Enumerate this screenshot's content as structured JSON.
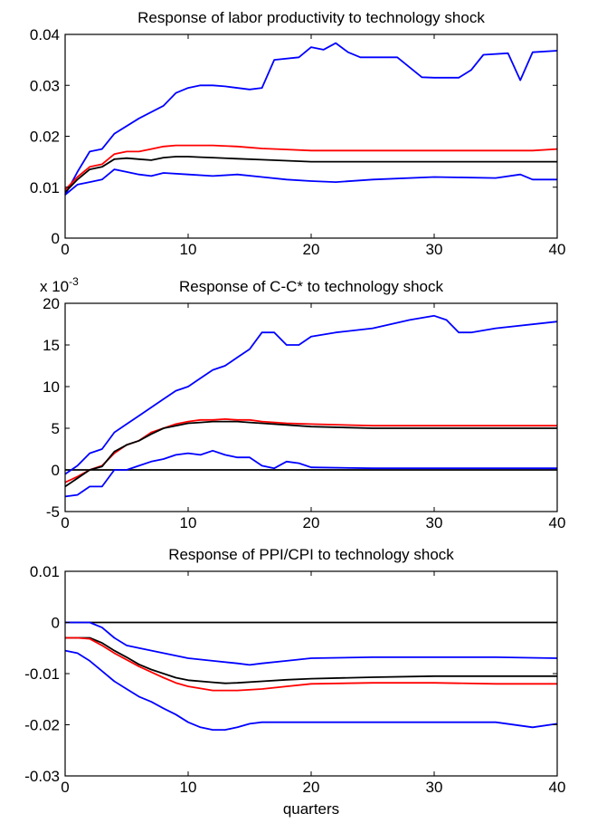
{
  "colors": {
    "blue": "#0000ff",
    "red": "#ff0000",
    "black": "#000000"
  },
  "chart_data": [
    {
      "type": "line",
      "title": "Response of labor productivity to technology shock",
      "xlabel": "",
      "xlim": [
        0,
        40
      ],
      "ylim": [
        0,
        0.04
      ],
      "xticks": [
        0,
        10,
        20,
        30,
        40
      ],
      "yticks": [
        0,
        0.01,
        0.02,
        0.03,
        0.04
      ],
      "xtick_labels": [
        "0",
        "10",
        "20",
        "30",
        "40"
      ],
      "ytick_labels": [
        "0",
        "0.01",
        "0.02",
        "0.03",
        "0.04"
      ],
      "exponent_label": "",
      "grid": false,
      "series": [
        {
          "color": "#0000ff",
          "x": [
            0,
            1,
            2,
            3,
            4,
            6,
            8,
            9,
            10,
            11,
            12,
            13,
            15,
            16,
            17,
            19,
            20,
            21,
            22,
            23,
            24,
            27,
            29,
            30,
            32,
            33,
            34,
            36,
            37,
            38,
            40
          ],
          "y": [
            0.0085,
            0.013,
            0.017,
            0.0175,
            0.0205,
            0.0235,
            0.026,
            0.0285,
            0.0295,
            0.03,
            0.03,
            0.0298,
            0.0292,
            0.0295,
            0.035,
            0.0355,
            0.0375,
            0.037,
            0.0383,
            0.0365,
            0.0355,
            0.0355,
            0.0316,
            0.0315,
            0.0315,
            0.033,
            0.036,
            0.0363,
            0.031,
            0.0365,
            0.0368
          ]
        },
        {
          "color": "#000000",
          "x": [
            0,
            1,
            2,
            3,
            4,
            5,
            6,
            7,
            8,
            9,
            10,
            11,
            12,
            14,
            16,
            18,
            20,
            25,
            30,
            35,
            40
          ],
          "y": [
            0.009,
            0.0115,
            0.0135,
            0.014,
            0.0155,
            0.0157,
            0.0155,
            0.0153,
            0.0158,
            0.016,
            0.016,
            0.0159,
            0.0158,
            0.0156,
            0.0154,
            0.0152,
            0.015,
            0.015,
            0.015,
            0.015,
            0.015
          ]
        },
        {
          "color": "#ff0000",
          "x": [
            0,
            1,
            2,
            3,
            4,
            5,
            6,
            7,
            8,
            9,
            10,
            12,
            14,
            16,
            18,
            20,
            25,
            30,
            35,
            38,
            40
          ],
          "y": [
            0.0095,
            0.012,
            0.014,
            0.0145,
            0.0165,
            0.017,
            0.017,
            0.0175,
            0.018,
            0.0182,
            0.0182,
            0.0182,
            0.018,
            0.0176,
            0.0174,
            0.0172,
            0.0172,
            0.0172,
            0.0172,
            0.0172,
            0.0175
          ]
        },
        {
          "color": "#0000ff",
          "x": [
            0,
            1,
            2,
            3,
            4,
            5,
            6,
            7,
            8,
            10,
            12,
            14,
            16,
            18,
            20,
            22,
            25,
            30,
            35,
            37,
            38,
            40
          ],
          "y": [
            0.0085,
            0.0105,
            0.011,
            0.0115,
            0.0135,
            0.013,
            0.0125,
            0.0122,
            0.0128,
            0.0125,
            0.0122,
            0.0125,
            0.012,
            0.0115,
            0.0112,
            0.011,
            0.0115,
            0.012,
            0.0118,
            0.0125,
            0.0115,
            0.0115
          ]
        }
      ]
    },
    {
      "type": "line",
      "title": "Response of C-C* to technology shock",
      "xlabel": "",
      "xlim": [
        0,
        40
      ],
      "ylim": [
        -5,
        20
      ],
      "xticks": [
        0,
        10,
        20,
        30,
        40
      ],
      "yticks": [
        -5,
        0,
        5,
        10,
        15,
        20
      ],
      "xtick_labels": [
        "0",
        "10",
        "20",
        "30",
        "40"
      ],
      "ytick_labels": [
        "-5",
        "0",
        "5",
        "10",
        "15",
        "20"
      ],
      "exponent_label": "x 10",
      "exponent_power": "-3",
      "grid": false,
      "series": [
        {
          "color": "#000000",
          "x": [
            0,
            40
          ],
          "y": [
            0,
            0
          ]
        },
        {
          "color": "#0000ff",
          "x": [
            0,
            1,
            2,
            3,
            4,
            5,
            6,
            7,
            8,
            9,
            10,
            11,
            12,
            13,
            14,
            15,
            16,
            17,
            18,
            19,
            20,
            22,
            25,
            28,
            30,
            31,
            32,
            33,
            35,
            40
          ],
          "y": [
            -0.5,
            0.5,
            2,
            2.5,
            4.5,
            5.5,
            6.5,
            7.5,
            8.5,
            9.5,
            10,
            11,
            12,
            12.5,
            13.5,
            14.5,
            16.5,
            16.5,
            15,
            15,
            16,
            16.5,
            17,
            18,
            18.5,
            18,
            16.5,
            16.5,
            17,
            17.8
          ]
        },
        {
          "color": "#ff0000",
          "x": [
            0,
            1,
            2,
            3,
            4,
            5,
            6,
            7,
            8,
            9,
            10,
            11,
            12,
            13,
            14,
            15,
            16,
            18,
            20,
            25,
            30,
            35,
            40
          ],
          "y": [
            -1.5,
            -0.8,
            0,
            0.5,
            2,
            3,
            3.5,
            4.5,
            5,
            5.5,
            5.8,
            6,
            6,
            6.1,
            6,
            6,
            5.8,
            5.6,
            5.5,
            5.3,
            5.3,
            5.3,
            5.3
          ]
        },
        {
          "color": "#000000",
          "x": [
            0,
            1,
            2,
            3,
            4,
            5,
            6,
            7,
            8,
            9,
            10,
            11,
            12,
            13,
            14,
            15,
            16,
            18,
            20,
            25,
            30,
            35,
            40
          ],
          "y": [
            -2,
            -1,
            0,
            0.4,
            2.2,
            3,
            3.5,
            4.3,
            5,
            5.3,
            5.6,
            5.7,
            5.8,
            5.8,
            5.8,
            5.7,
            5.6,
            5.4,
            5.2,
            5,
            5,
            5,
            5
          ]
        },
        {
          "color": "#0000ff",
          "x": [
            0,
            1,
            2,
            3,
            4,
            5,
            6,
            7,
            8,
            9,
            10,
            11,
            12,
            13,
            14,
            15,
            16,
            17,
            18,
            19,
            20,
            25,
            30,
            35,
            40
          ],
          "y": [
            -3.2,
            -3,
            -2,
            -2,
            0,
            0,
            0.5,
            1,
            1.3,
            1.8,
            2,
            1.8,
            2.3,
            1.8,
            1.5,
            1.5,
            0.5,
            0.2,
            1,
            0.8,
            0.3,
            0.2,
            0.2,
            0.2,
            0.2
          ]
        }
      ]
    },
    {
      "type": "line",
      "title": "Response of PPI/CPI to technology shock",
      "xlabel": "quarters",
      "xlim": [
        0,
        40
      ],
      "ylim": [
        -0.03,
        0.01
      ],
      "xticks": [
        0,
        10,
        20,
        30,
        40
      ],
      "yticks": [
        -0.03,
        -0.02,
        -0.01,
        0,
        0.01
      ],
      "xtick_labels": [
        "0",
        "10",
        "20",
        "30",
        "40"
      ],
      "ytick_labels": [
        "-0.03",
        "-0.02",
        "-0.01",
        "0",
        "0.01"
      ],
      "exponent_label": "",
      "grid": false,
      "series": [
        {
          "color": "#000000",
          "x": [
            0,
            40
          ],
          "y": [
            0,
            0
          ]
        },
        {
          "color": "#0000ff",
          "x": [
            0,
            2,
            3,
            4,
            5,
            6,
            8,
            10,
            12,
            14,
            15,
            16,
            18,
            20,
            25,
            30,
            35,
            40
          ],
          "y": [
            0,
            0,
            -0.001,
            -0.003,
            -0.0045,
            -0.005,
            -0.006,
            -0.007,
            -0.0075,
            -0.008,
            -0.0083,
            -0.008,
            -0.0075,
            -0.007,
            -0.0068,
            -0.0068,
            -0.0068,
            -0.007
          ]
        },
        {
          "color": "#000000",
          "x": [
            0,
            1,
            2,
            3,
            4,
            5,
            6,
            7,
            8,
            9,
            10,
            12,
            13,
            14,
            16,
            18,
            20,
            25,
            30,
            35,
            40
          ],
          "y": [
            -0.003,
            -0.003,
            -0.003,
            -0.004,
            -0.0055,
            -0.0068,
            -0.0082,
            -0.0092,
            -0.01,
            -0.0108,
            -0.0113,
            -0.0117,
            -0.0119,
            -0.0118,
            -0.0115,
            -0.0112,
            -0.011,
            -0.0107,
            -0.0105,
            -0.0105,
            -0.0105
          ]
        },
        {
          "color": "#ff0000",
          "x": [
            0,
            1,
            2,
            3,
            4,
            5,
            6,
            7,
            8,
            9,
            10,
            12,
            14,
            16,
            18,
            20,
            25,
            30,
            35,
            40
          ],
          "y": [
            -0.003,
            -0.003,
            -0.0032,
            -0.0045,
            -0.006,
            -0.0073,
            -0.0086,
            -0.0097,
            -0.0108,
            -0.0118,
            -0.0125,
            -0.0133,
            -0.0133,
            -0.013,
            -0.0125,
            -0.012,
            -0.0118,
            -0.0118,
            -0.012,
            -0.012
          ]
        },
        {
          "color": "#0000ff",
          "x": [
            0,
            1,
            2,
            3,
            4,
            5,
            6,
            7,
            8,
            9,
            10,
            11,
            12,
            13,
            14,
            15,
            16,
            18,
            20,
            25,
            30,
            35,
            38,
            40
          ],
          "y": [
            -0.0055,
            -0.006,
            -0.0075,
            -0.0095,
            -0.0115,
            -0.013,
            -0.0145,
            -0.0155,
            -0.0168,
            -0.018,
            -0.0195,
            -0.0205,
            -0.021,
            -0.021,
            -0.0205,
            -0.0198,
            -0.0195,
            -0.0195,
            -0.0195,
            -0.0195,
            -0.0195,
            -0.0195,
            -0.0205,
            -0.0198
          ]
        }
      ]
    }
  ]
}
